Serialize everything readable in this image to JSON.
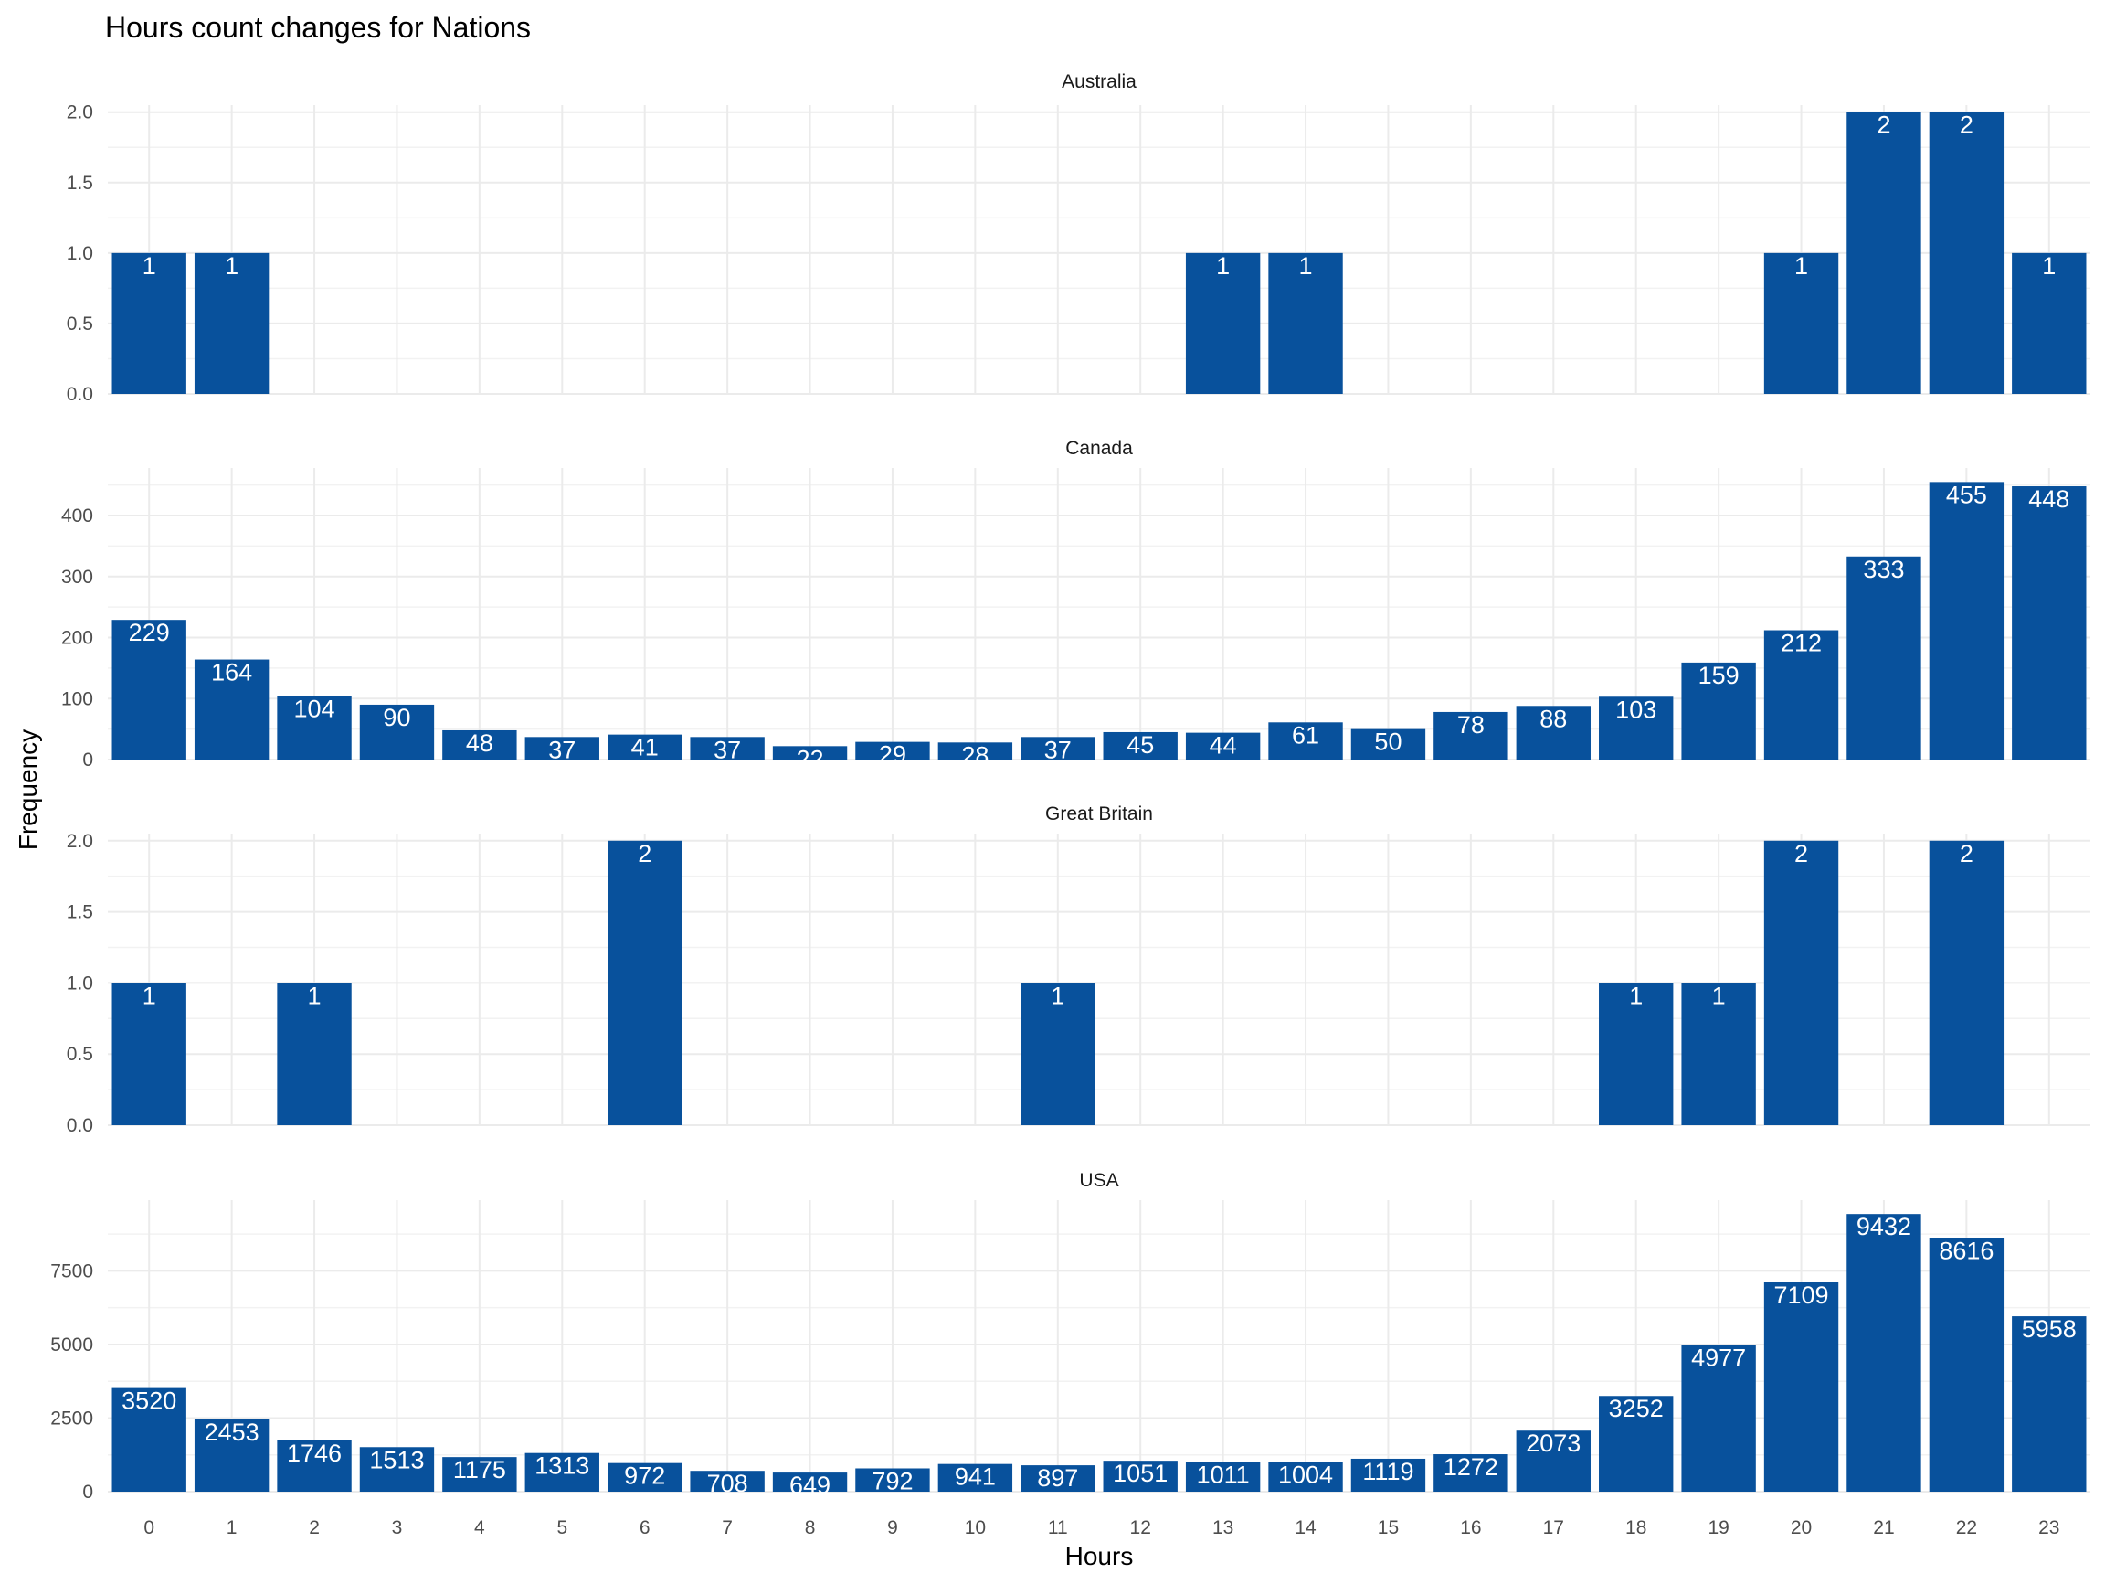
{
  "chart_data": {
    "type": "bar",
    "title": "Hours count changes for Nations",
    "xlabel": "Hours",
    "ylabel": "Frequency",
    "categories": [
      "0",
      "1",
      "2",
      "3",
      "4",
      "5",
      "6",
      "7",
      "8",
      "9",
      "10",
      "11",
      "12",
      "13",
      "14",
      "15",
      "16",
      "17",
      "18",
      "19",
      "20",
      "21",
      "22",
      "23"
    ],
    "bar_color": "#08519c",
    "label_color": "#ffffff",
    "grid": true,
    "legend": "none",
    "facets": [
      {
        "name": "Australia",
        "ylim": [
          0,
          2.05
        ],
        "y_ticks": [
          0,
          0.5,
          1,
          1.5,
          2
        ],
        "y_tick_labels": [
          "0.0",
          "0.5",
          "1.0",
          "1.5",
          "2.0"
        ],
        "values": [
          1,
          1,
          0,
          0,
          0,
          0,
          0,
          0,
          0,
          0,
          0,
          0,
          0,
          1,
          1,
          0,
          0,
          0,
          0,
          0,
          1,
          2,
          2,
          1
        ]
      },
      {
        "name": "Canada",
        "ylim": [
          0,
          478
        ],
        "y_ticks": [
          0,
          100,
          200,
          300,
          400
        ],
        "y_tick_labels": [
          "0",
          "100",
          "200",
          "300",
          "400"
        ],
        "values": [
          229,
          164,
          104,
          90,
          48,
          37,
          41,
          37,
          22,
          29,
          28,
          37,
          45,
          44,
          61,
          50,
          78,
          88,
          103,
          159,
          212,
          333,
          455,
          448
        ]
      },
      {
        "name": "Great Britain",
        "ylim": [
          0,
          2.05
        ],
        "y_ticks": [
          0,
          0.5,
          1,
          1.5,
          2
        ],
        "y_tick_labels": [
          "0.0",
          "0.5",
          "1.0",
          "1.5",
          "2.0"
        ],
        "values": [
          1,
          0,
          1,
          0,
          0,
          0,
          2,
          0,
          0,
          0,
          0,
          1,
          0,
          0,
          0,
          0,
          0,
          0,
          1,
          1,
          2,
          0,
          2,
          0
        ]
      },
      {
        "name": "USA",
        "ylim": [
          0,
          9903
        ],
        "y_ticks": [
          0,
          2500,
          5000,
          7500
        ],
        "y_tick_labels": [
          "0",
          "2500",
          "5000",
          "7500"
        ],
        "values": [
          3520,
          2453,
          1746,
          1513,
          1175,
          1313,
          972,
          708,
          649,
          792,
          941,
          897,
          1051,
          1011,
          1004,
          1119,
          1272,
          2073,
          3252,
          4977,
          7109,
          9432,
          8616,
          5958
        ]
      }
    ]
  }
}
